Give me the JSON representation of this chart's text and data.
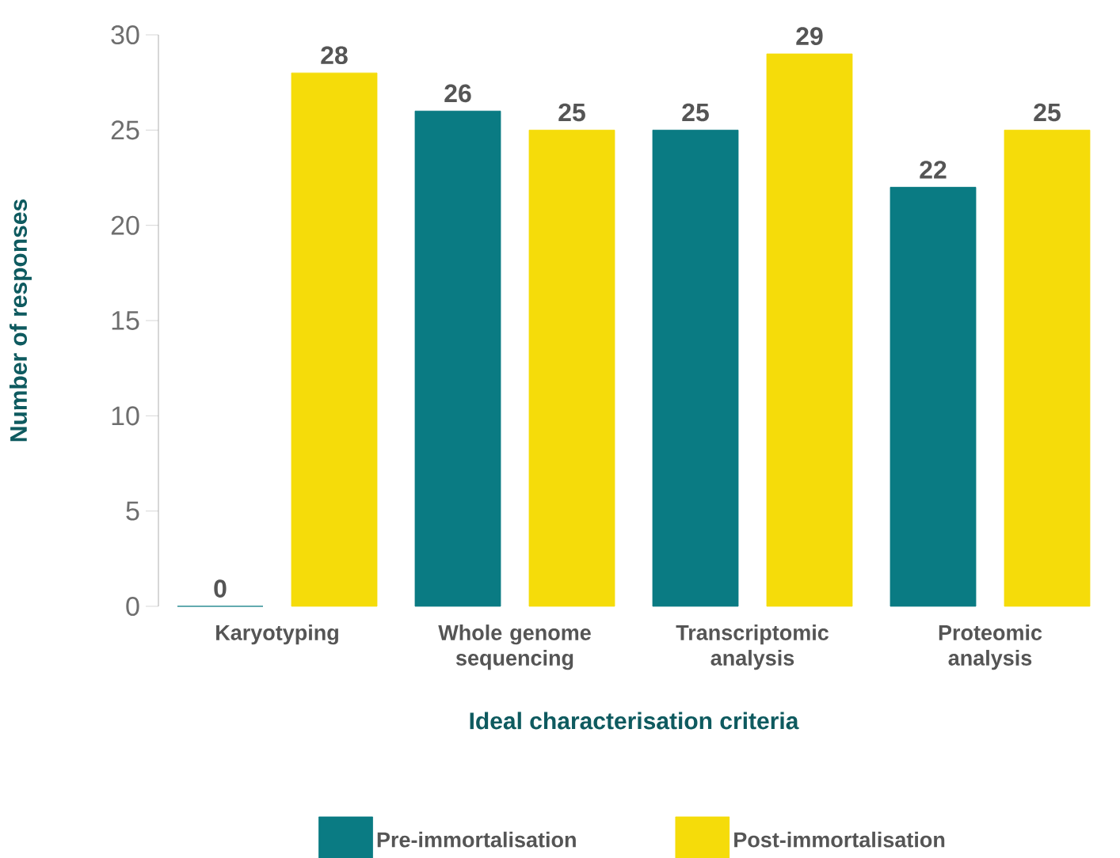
{
  "chart_data": {
    "type": "bar",
    "xlabel": "Ideal characterisation criteria",
    "ylabel": "Number of responses",
    "categories": [
      "Karyotyping",
      "Whole genome sequencing",
      "Transcriptomic analysis",
      "Proteomic analysis"
    ],
    "series": [
      {
        "name": "Pre-immortalisation",
        "color": "#0a7b83",
        "values": [
          0,
          26,
          25,
          22
        ]
      },
      {
        "name": "Post-immortalisation",
        "color": "#f5dc0a",
        "values": [
          28,
          25,
          29,
          25
        ]
      }
    ],
    "ylim": [
      0,
      30
    ],
    "yticks": [
      0,
      5,
      10,
      15,
      20,
      25,
      30
    ],
    "data_labels": true,
    "grid": false,
    "legend": "bottom"
  }
}
